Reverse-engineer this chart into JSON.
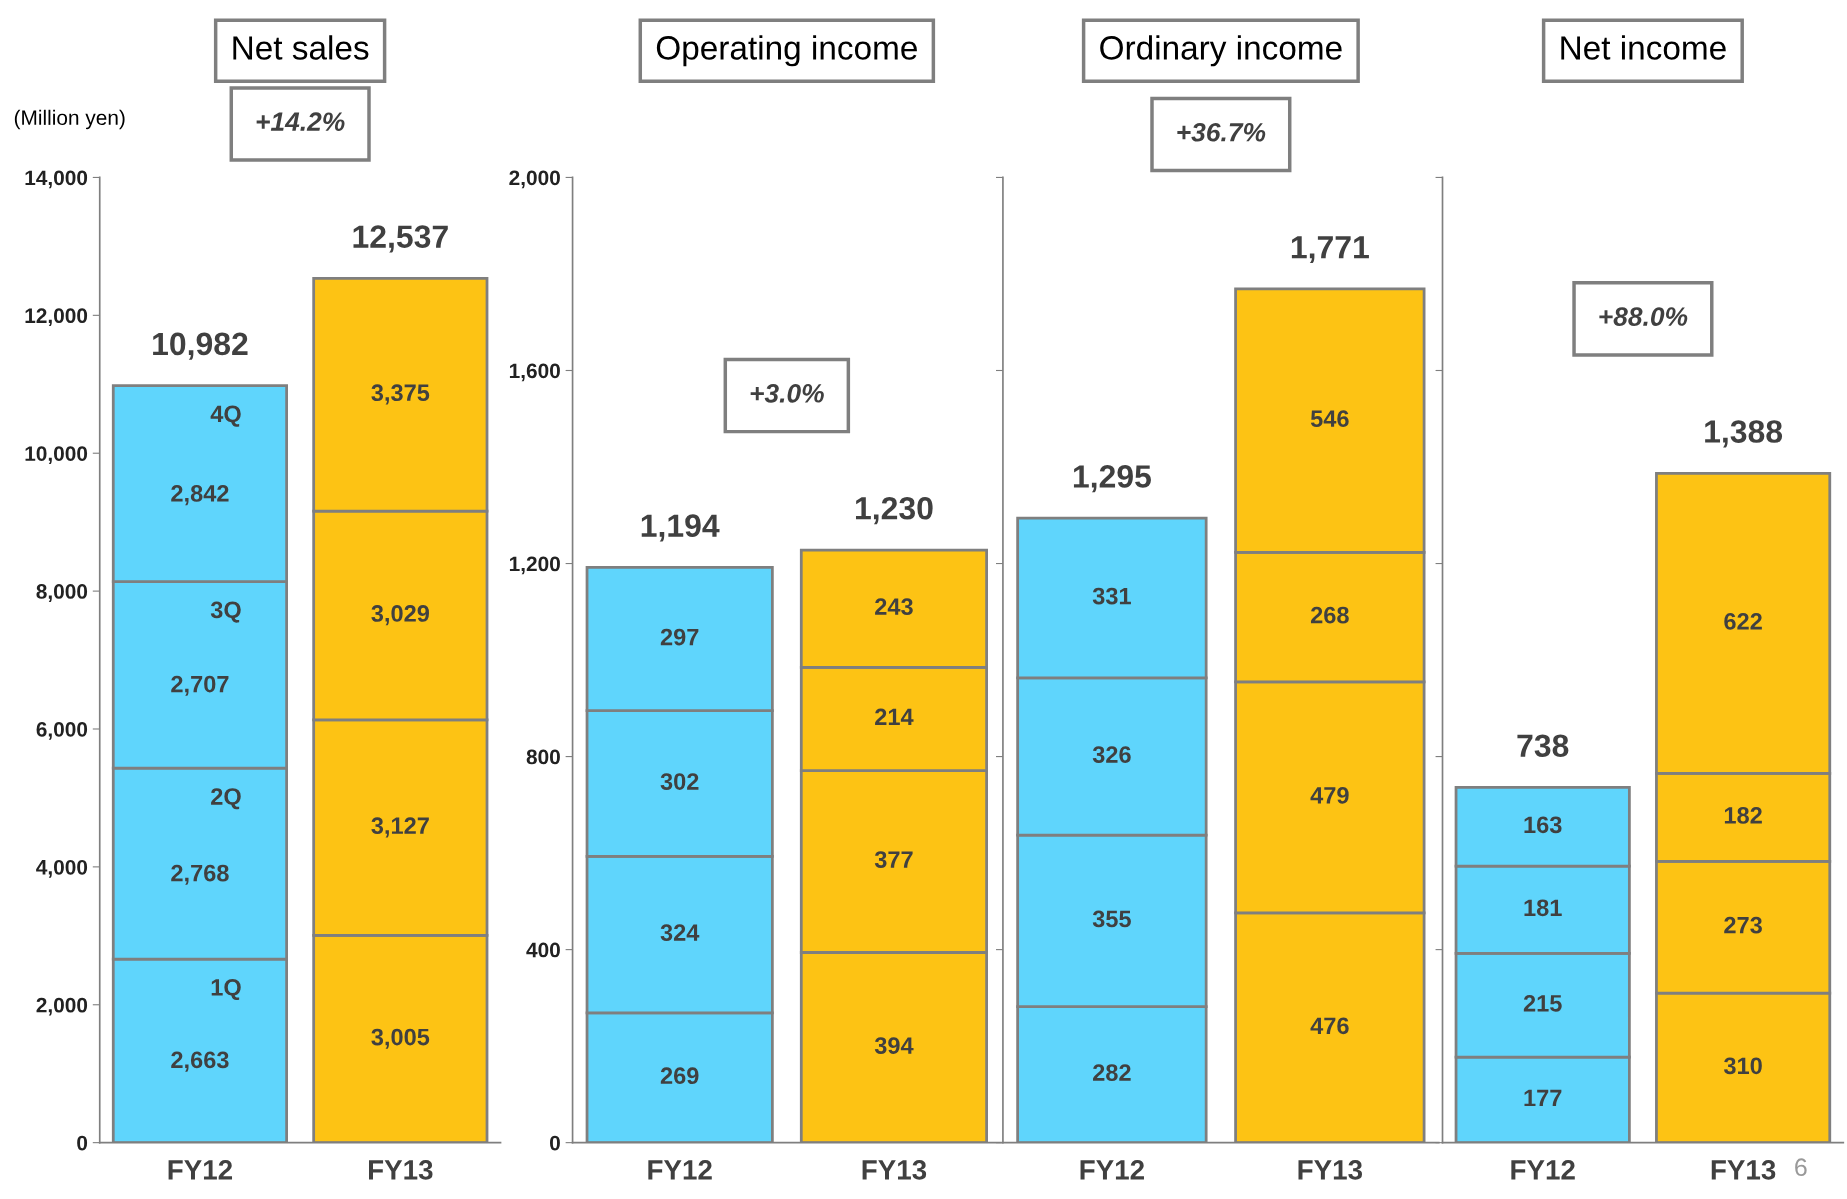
{
  "chart_data": [
    {
      "type": "bar",
      "title": "Net sales",
      "ylabel": "(Million yen)",
      "categories": [
        "FY12",
        "FY13"
      ],
      "stacked": true,
      "ylim": [
        0,
        14000
      ],
      "yticks": [
        0,
        {
          "value": 2000,
          "label": "2,000"
        },
        {
          "value": 4000,
          "label": "4,000"
        },
        {
          "value": 6000,
          "label": "6,000"
        },
        {
          "value": 8000,
          "label": "8,000"
        },
        {
          "value": 10000,
          "label": "10,000"
        },
        {
          "value": 12000,
          "label": "12,000"
        },
        {
          "value": 14000,
          "label": "14,000"
        }
      ],
      "series": [
        {
          "colors": [
            "#5fd5fc",
            "#fdc314"
          ],
          "values": [
            2663,
            3005
          ],
          "value_labels": [
            "2,663",
            "3,005"
          ]
        },
        {
          "colors": [
            "#5fd5fc",
            "#fdc314"
          ],
          "values": [
            2768,
            3127
          ],
          "value_labels": [
            "2,768",
            "3,127"
          ]
        },
        {
          "colors": [
            "#5fd5fc",
            "#fdc314"
          ],
          "values": [
            2707,
            3029
          ],
          "value_labels": [
            "2,707",
            "3,029"
          ]
        },
        {
          "colors": [
            "#5fd5fc",
            "#fdc314"
          ],
          "values": [
            2842,
            3375
          ],
          "value_labels": [
            "2,842",
            "3,375"
          ]
        }
      ],
      "totals": [
        "10,982",
        "12,537"
      ],
      "annotations": [
        "+14.2%",
        "1Q",
        "2Q",
        "3Q",
        "4Q"
      ]
    },
    {
      "type": "bar",
      "title": "Operating income",
      "categories": [
        "FY12",
        "FY13"
      ],
      "stacked": true,
      "data_labels": true,
      "ylim": [
        0,
        2000
      ],
      "yticks": [
        0,
        400,
        800,
        {
          "value": 1200,
          "label": "1,200"
        },
        {
          "value": 1600,
          "label": "1,600"
        },
        {
          "value": 2000,
          "label": "2,000"
        }
      ],
      "series": [
        {
          "colors": [
            "#5fd5fc",
            "#fdc314"
          ],
          "values": [
            269,
            394
          ]
        },
        {
          "colors": [
            "#5fd5fc",
            "#fdc314"
          ],
          "values": [
            324,
            377
          ]
        },
        {
          "colors": [
            "#5fd5fc",
            "#fdc314"
          ],
          "values": [
            302,
            214
          ]
        },
        {
          "colors": [
            "#5fd5fc",
            "#fdc314"
          ],
          "values": [
            297,
            243
          ]
        }
      ],
      "totals": [
        "1,194",
        "1,230"
      ],
      "annotations": [
        "+3.0%"
      ]
    },
    {
      "type": "bar",
      "title": "Ordinary income",
      "categories": [
        "FY12",
        "FY13"
      ],
      "stacked": true,
      "data_labels": true,
      "ylim": [
        0,
        2000
      ],
      "tick_labels": "x",
      "yticks": [
        0,
        400,
        800,
        1200,
        1600,
        2000
      ],
      "series": [
        {
          "colors": [
            "#5fd5fc",
            "#fdc314"
          ],
          "values": [
            282,
            476
          ]
        },
        {
          "colors": [
            "#5fd5fc",
            "#fdc314"
          ],
          "values": [
            355,
            479
          ]
        },
        {
          "colors": [
            "#5fd5fc",
            "#fdc314"
          ],
          "values": [
            326,
            268
          ]
        },
        {
          "colors": [
            "#5fd5fc",
            "#fdc314"
          ],
          "values": [
            331,
            546
          ]
        }
      ],
      "totals": [
        "1,295",
        "1,771"
      ],
      "annotations": [
        "+36.7%"
      ]
    },
    {
      "type": "bar",
      "title": "Net income",
      "categories": [
        "FY12",
        "FY13"
      ],
      "stacked": true,
      "data_labels": true,
      "ylim": [
        0,
        2000
      ],
      "tick_labels": "x",
      "yticks": [
        0,
        400,
        800,
        1200,
        1600,
        2000
      ],
      "series": [
        {
          "colors": [
            "#5fd5fc",
            "#fdc314"
          ],
          "values": [
            177,
            310
          ]
        },
        {
          "colors": [
            "#5fd5fc",
            "#fdc314"
          ],
          "values": [
            215,
            273
          ]
        },
        {
          "colors": [
            "#5fd5fc",
            "#fdc314"
          ],
          "values": [
            181,
            182
          ]
        },
        {
          "colors": [
            "#5fd5fc",
            "#fdc314"
          ],
          "values": [
            163,
            622
          ]
        }
      ],
      "totals": [
        "738",
        "1,388"
      ],
      "annotations": [
        "+88.0%",
        "6"
      ]
    }
  ]
}
